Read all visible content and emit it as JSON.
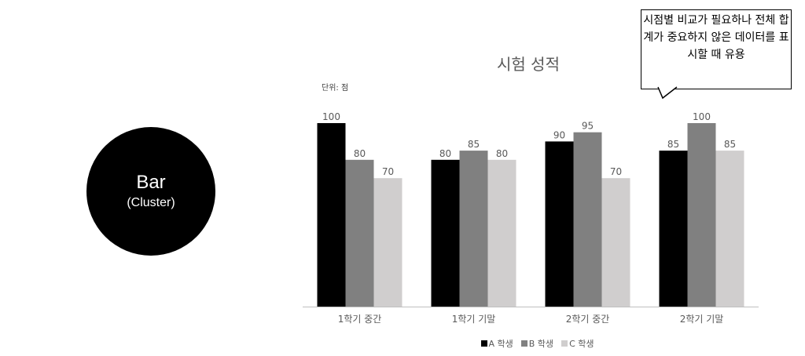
{
  "circle": {
    "title": "Bar",
    "subtitle": "(Cluster)"
  },
  "callout": {
    "text": "시점별 비교가 필요하나 전체 합계가 중요하지 않은 데이터를 표시할 때 유용"
  },
  "colors": {
    "A": "#000000",
    "B": "#808080",
    "C": "#d0cece",
    "axis": "#bfbfbf"
  },
  "chart_data": {
    "type": "bar",
    "title": "시험 성적",
    "unit_label": "단위: 점",
    "categories": [
      "1학기 중간",
      "1학기 기말",
      "2학기 중간",
      "2학기 기말"
    ],
    "series": [
      {
        "name": "A 학생",
        "values": [
          100,
          80,
          90,
          85
        ]
      },
      {
        "name": "B 학생",
        "values": [
          80,
          85,
          95,
          100
        ]
      },
      {
        "name": "C 학생",
        "values": [
          70,
          80,
          70,
          85
        ]
      }
    ],
    "ylim": [
      0,
      100
    ],
    "grid": false,
    "legend_position": "bottom"
  }
}
